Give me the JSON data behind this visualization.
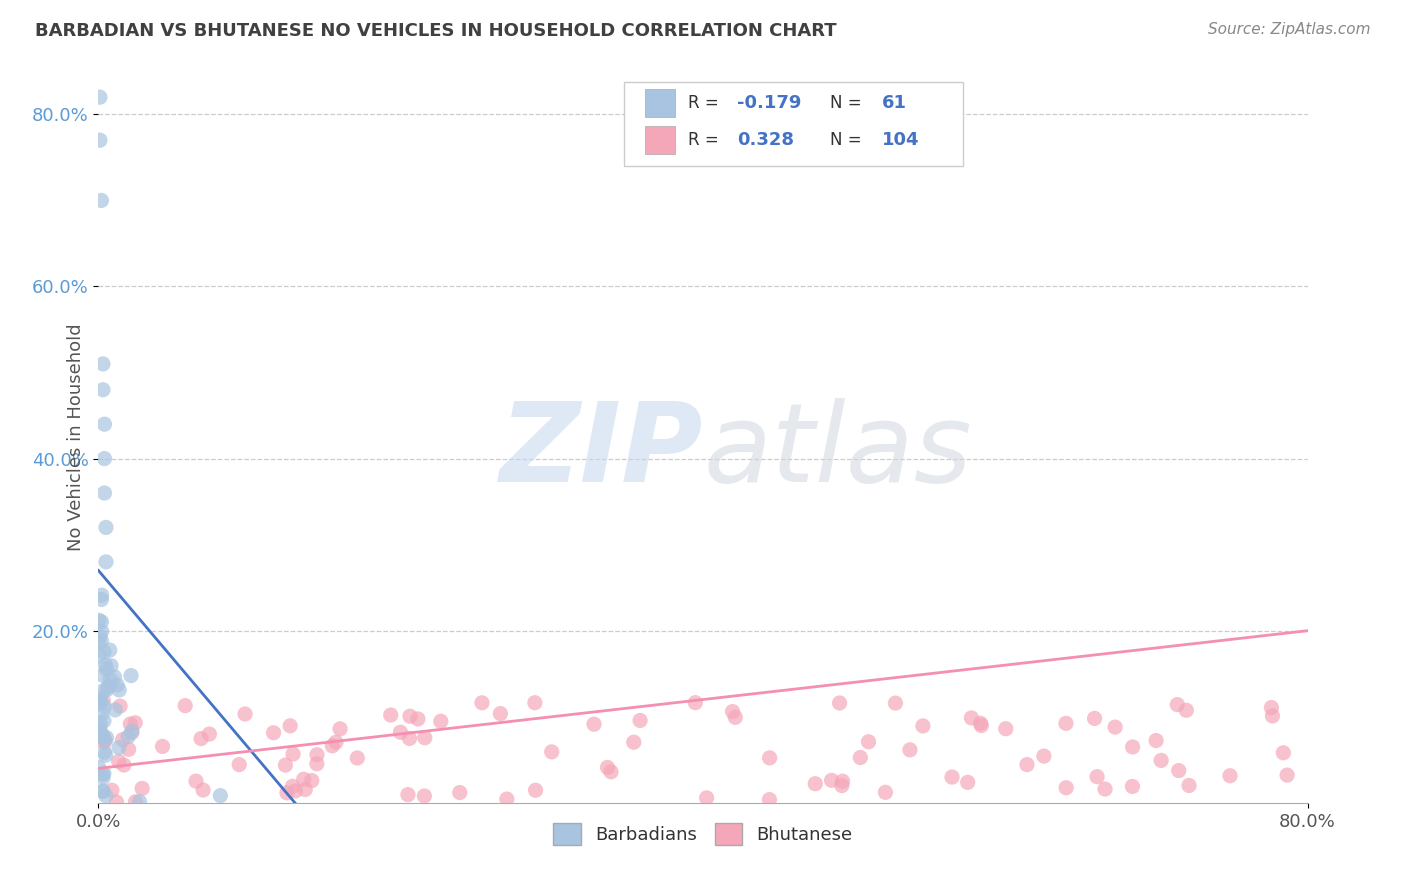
{
  "title": "BARBADIAN VS BHUTANESE NO VEHICLES IN HOUSEHOLD CORRELATION CHART",
  "source_text": "Source: ZipAtlas.com",
  "ylabel": "No Vehicles in Household",
  "watermark_zip": "ZIP",
  "watermark_atlas": "atlas",
  "barbadian_R": -0.179,
  "barbadian_N": 61,
  "bhutanese_R": 0.328,
  "bhutanese_N": 104,
  "barbadian_color": "#a8c4e0",
  "bhutanese_color": "#f4a7b9",
  "barbadian_line_color": "#4472c4",
  "bhutanese_line_color": "#f48fb1",
  "background_color": "#ffffff",
  "grid_color": "#cccccc",
  "title_color": "#404040",
  "legend_text_color": "#4472c4",
  "source_color": "#888888",
  "ytick_color": "#5b9bd5"
}
